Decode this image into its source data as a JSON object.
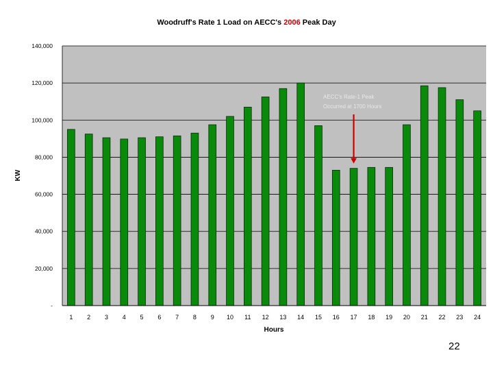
{
  "chart_data": {
    "type": "bar",
    "title": {
      "before": "Woodruff's Rate 1 Load on AECC's ",
      "year": "2006",
      "after": " Peak Day"
    },
    "xlabel": "Hours",
    "ylabel": "KW",
    "ylim": [
      0,
      140000
    ],
    "y_ticks": [
      "-",
      "20,000",
      "40,000",
      "60,000",
      "80,000",
      "100,000",
      "120,000",
      "140,000"
    ],
    "grid": "horizontal",
    "categories": [
      "1",
      "2",
      "3",
      "4",
      "5",
      "6",
      "7",
      "8",
      "9",
      "10",
      "11",
      "12",
      "13",
      "14",
      "15",
      "16",
      "17",
      "18",
      "19",
      "20",
      "21",
      "22",
      "23",
      "24"
    ],
    "series": [
      {
        "values": [
          95000,
          92500,
          90500,
          89800,
          90500,
          91000,
          91500,
          93000,
          97500,
          102000,
          107000,
          112500,
          117000,
          120000,
          97000,
          73000,
          74000,
          74500,
          74500,
          97500,
          118500,
          117500,
          111000,
          105000
        ]
      }
    ],
    "annotation": {
      "lines": [
        "AECC's Rate-1 Peak",
        "Occurred at 1700 Hours"
      ],
      "arrow_category": "17"
    },
    "colors": {
      "bar": "#0a8a0a",
      "bar_edge": "#0a2a0a",
      "plot_bg": "#c0c0c0",
      "title_year": "#cc0000",
      "arrow": "#cc0000",
      "annotation_text": "#e8e8e8"
    }
  },
  "page_number": "22"
}
